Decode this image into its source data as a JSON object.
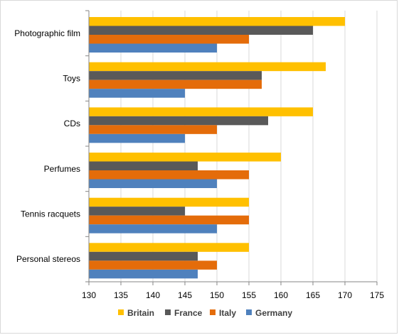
{
  "chart_data": {
    "type": "bar",
    "orientation": "horizontal",
    "title": "",
    "xlabel": "",
    "ylabel": "",
    "categories": [
      "Photographic film",
      "Toys",
      "CDs",
      "Perfumes",
      "Tennis racquets",
      "Personal stereos"
    ],
    "xlim": [
      130,
      175
    ],
    "ticks": [
      "130",
      "135",
      "140",
      "145",
      "150",
      "155",
      "160",
      "165",
      "170",
      "175"
    ],
    "grid": true,
    "legend_position": "bottom",
    "series": [
      {
        "name": "Britain",
        "color": "#FFC000",
        "values": [
          170,
          167,
          165,
          160,
          155,
          155
        ]
      },
      {
        "name": "France",
        "color": "#595959",
        "values": [
          165,
          157,
          158,
          147,
          145,
          147
        ]
      },
      {
        "name": "Italy",
        "color": "#E46C0A",
        "values": [
          155,
          157,
          150,
          155,
          155,
          150
        ]
      },
      {
        "name": "Germany",
        "color": "#4F81BD",
        "values": [
          150,
          145,
          145,
          150,
          150,
          147
        ]
      }
    ]
  }
}
